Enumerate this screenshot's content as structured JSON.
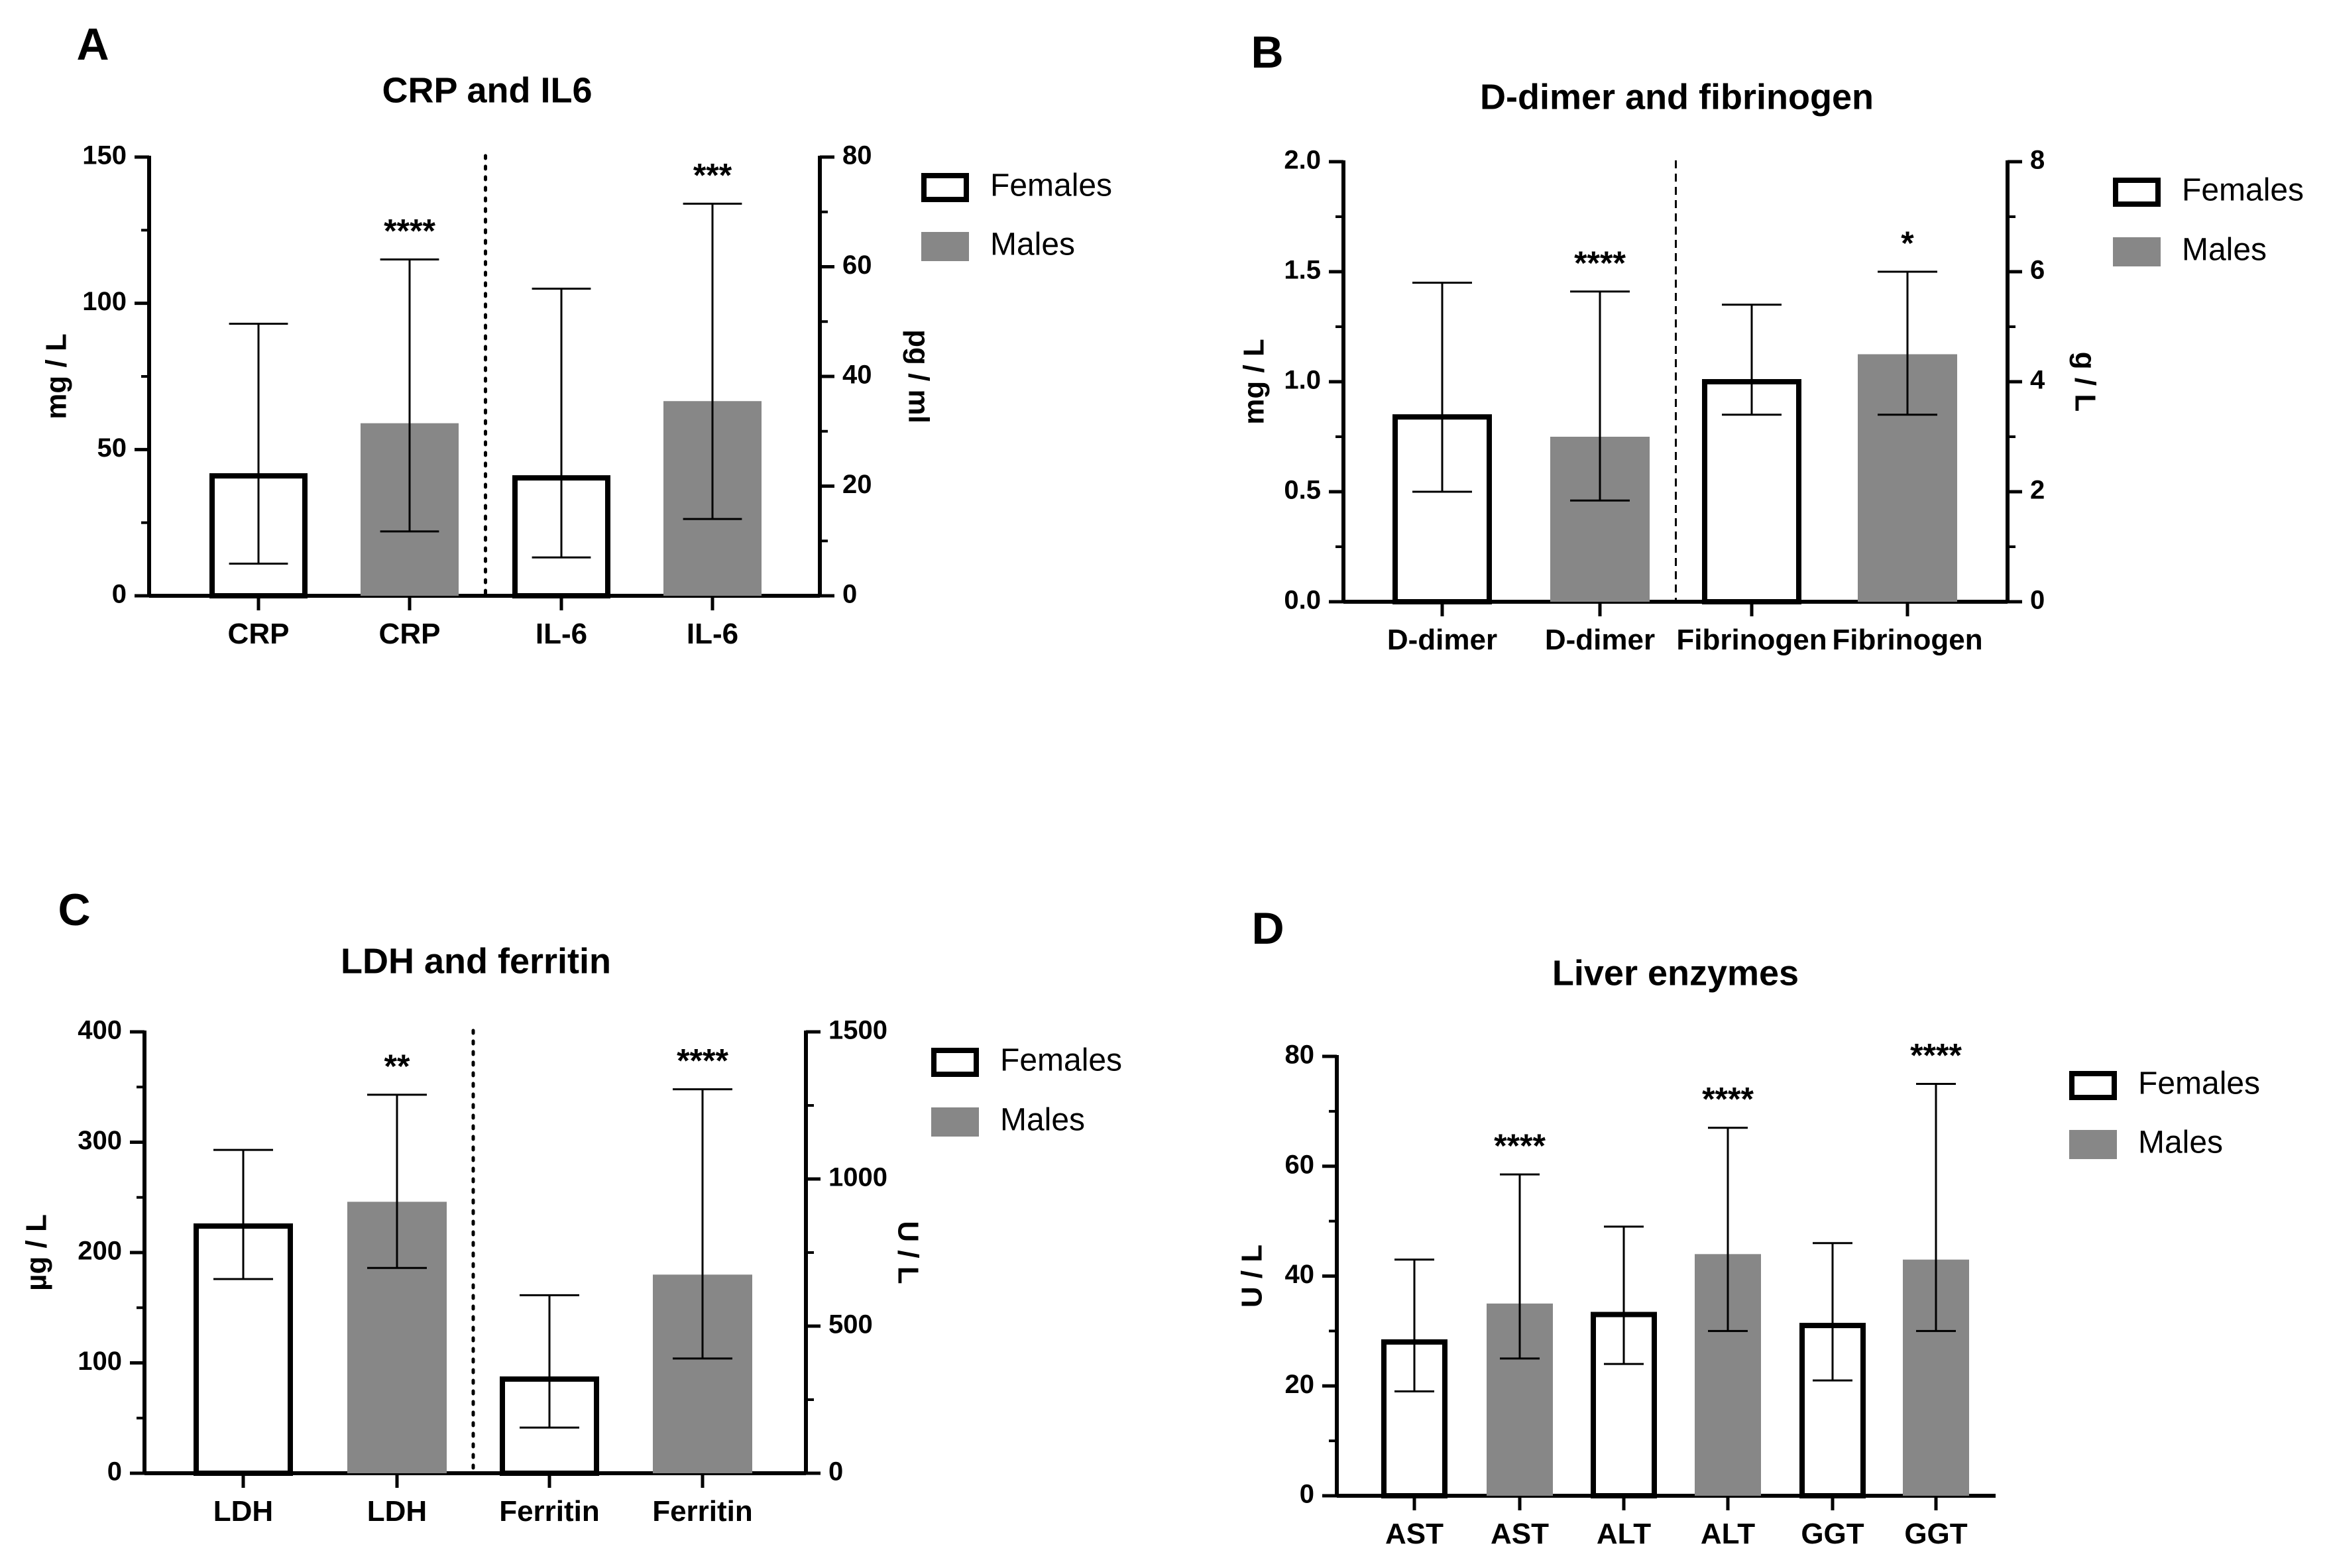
{
  "colors": {
    "females_fill": "#ffffff",
    "males_fill": "#878787",
    "stroke": "#000000"
  },
  "panels": [
    {
      "letter": "A",
      "title": "CRP and IL6",
      "left_axis": {
        "label": "mg / L",
        "min": 0,
        "max": 150,
        "ticks": [
          "0",
          "50",
          "100",
          "150"
        ]
      },
      "right_axis": {
        "label": "pg / ml",
        "min": 0,
        "max": 80,
        "ticks": [
          "0",
          "20",
          "40",
          "60",
          "80"
        ]
      },
      "legend": [
        "Females",
        "Males"
      ],
      "divider_after": 2,
      "divider_style": "dotted"
    },
    {
      "letter": "B",
      "title": "D-dimer and fibrinogen",
      "left_axis": {
        "label": "mg / L",
        "min": 0,
        "max": 2,
        "ticks": [
          "0.0",
          "0.5",
          "1.0",
          "1.5",
          "2.0"
        ]
      },
      "right_axis": {
        "label": "g / L",
        "min": 0,
        "max": 8,
        "ticks": [
          "0",
          "2",
          "4",
          "6",
          "8"
        ]
      },
      "legend": [
        "Females",
        "Males"
      ],
      "divider_after": 2,
      "divider_style": "dashed"
    },
    {
      "letter": "C",
      "title": "LDH and ferritin",
      "left_axis": {
        "label": "µg / L",
        "min": 0,
        "max": 400,
        "ticks": [
          "0",
          "100",
          "200",
          "300",
          "400"
        ]
      },
      "right_axis": {
        "label": "U / L",
        "min": 0,
        "max": 1500,
        "ticks": [
          "0",
          "500",
          "1000",
          "1500"
        ]
      },
      "legend": [
        "Females",
        "Males"
      ],
      "divider_after": 2,
      "divider_style": "dotted"
    },
    {
      "letter": "D",
      "title": "Liver enzymes",
      "left_axis": {
        "label": "U / L",
        "min": 0,
        "max": 80,
        "ticks": [
          "0",
          "20",
          "40",
          "60",
          "80"
        ]
      },
      "right_axis": null,
      "legend": [
        "Females",
        "Males"
      ],
      "divider_after": null,
      "divider_style": null
    }
  ],
  "chart_data": [
    {
      "type": "bar",
      "title": "CRP and IL6",
      "ylabel": "mg / L",
      "y2label": "pg / ml",
      "ylim": [
        0,
        150
      ],
      "y2lim": [
        0,
        80
      ],
      "categories": [
        "CRP",
        "CRP",
        "IL-6",
        "IL-6"
      ],
      "groups": [
        "Females",
        "Males",
        "Females",
        "Males"
      ],
      "axis": [
        "left",
        "left",
        "right",
        "right"
      ],
      "values": [
        41,
        59,
        21.5,
        35.5
      ],
      "error_low": [
        11,
        22,
        7,
        14
      ],
      "error_high": [
        93,
        115,
        56,
        71.5
      ],
      "significance": [
        "",
        "****",
        "",
        "***"
      ]
    },
    {
      "type": "bar",
      "title": "D-dimer and fibrinogen",
      "ylabel": "mg / L",
      "y2label": "g / L",
      "ylim": [
        0,
        2
      ],
      "y2lim": [
        0,
        8
      ],
      "categories": [
        "D-dimer",
        "D-dimer",
        "Fibrinogen",
        "Fibrinogen"
      ],
      "groups": [
        "Females",
        "Males",
        "Females",
        "Males"
      ],
      "axis": [
        "left",
        "left",
        "right",
        "right"
      ],
      "values": [
        0.84,
        0.75,
        4.0,
        4.5
      ],
      "error_low": [
        0.5,
        0.46,
        3.4,
        3.4
      ],
      "error_high": [
        1.45,
        1.41,
        5.4,
        6.0
      ],
      "significance": [
        "",
        "****",
        "",
        "*"
      ]
    },
    {
      "type": "bar",
      "title": "LDH and ferritin",
      "ylabel": "µg / L",
      "y2label": "U / L",
      "ylim": [
        0,
        400
      ],
      "y2lim": [
        0,
        1500
      ],
      "categories": [
        "LDH",
        "LDH",
        "Ferritin",
        "Ferritin"
      ],
      "groups": [
        "Females",
        "Males",
        "Females",
        "Males"
      ],
      "axis": [
        "left",
        "left",
        "right",
        "right"
      ],
      "values": [
        224,
        246,
        320,
        675
      ],
      "error_low": [
        176,
        186,
        155,
        390
      ],
      "error_high": [
        293,
        343,
        605,
        1305
      ],
      "significance": [
        "",
        "**",
        "",
        "****"
      ]
    },
    {
      "type": "bar",
      "title": "Liver enzymes",
      "ylabel": "U / L",
      "ylim": [
        0,
        80
      ],
      "categories": [
        "AST",
        "AST",
        "ALT",
        "ALT",
        "GGT",
        "GGT"
      ],
      "groups": [
        "Females",
        "Males",
        "Females",
        "Males",
        "Females",
        "Males"
      ],
      "axis": [
        "left",
        "left",
        "left",
        "left",
        "left",
        "left"
      ],
      "values": [
        28,
        35,
        33,
        44,
        31,
        43
      ],
      "error_low": [
        19,
        25,
        24,
        30,
        21,
        30
      ],
      "error_high": [
        43,
        58.5,
        49,
        67,
        46,
        75
      ],
      "significance": [
        "",
        "****",
        "",
        "****",
        "",
        "****"
      ]
    }
  ]
}
